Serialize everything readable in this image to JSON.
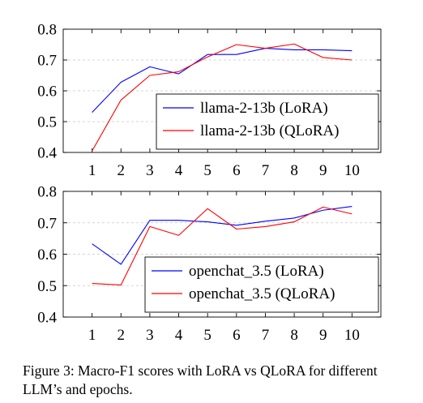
{
  "caption": "Figure 3: Macro-F1 scores with LoRA vs QLoRA for different LLM’s and epochs.",
  "chart_data": [
    {
      "type": "line",
      "x": [
        1,
        2,
        3,
        4,
        5,
        6,
        7,
        8,
        9,
        10
      ],
      "xticks": [
        "1",
        "2",
        "3",
        "4",
        "5",
        "6",
        "7",
        "8",
        "9",
        "10"
      ],
      "xlim": [
        0,
        11
      ],
      "yticks": [
        "0.4",
        "0.5",
        "0.6",
        "0.7",
        "0.8"
      ],
      "ylim": [
        0.4,
        0.8
      ],
      "grid": "horizontal dashed",
      "legend_position": "bottom-right",
      "series": [
        {
          "name": "llama-2-13b (LoRA)",
          "color": "#0000ff",
          "values": [
            0.53,
            0.628,
            0.678,
            0.655,
            0.718,
            0.718,
            0.738,
            0.733,
            0.733,
            0.73
          ]
        },
        {
          "name": "llama-2-13b (QLoRA)",
          "color": "#ff0000",
          "values": [
            0.405,
            0.57,
            0.65,
            0.662,
            0.71,
            0.75,
            0.738,
            0.752,
            0.708,
            0.7
          ]
        }
      ]
    },
    {
      "type": "line",
      "x": [
        1,
        2,
        3,
        4,
        5,
        6,
        7,
        8,
        9,
        10
      ],
      "xticks": [
        "1",
        "2",
        "3",
        "4",
        "5",
        "6",
        "7",
        "8",
        "9",
        "10"
      ],
      "xlim": [
        0,
        11
      ],
      "yticks": [
        "0.4",
        "0.5",
        "0.6",
        "0.7",
        "0.8"
      ],
      "ylim": [
        0.4,
        0.8
      ],
      "grid": "horizontal dashed",
      "legend_position": "bottom-right",
      "series": [
        {
          "name": "openchat_3.5 (LoRA)",
          "color": "#0000ff",
          "values": [
            0.633,
            0.568,
            0.708,
            0.708,
            0.703,
            0.692,
            0.705,
            0.715,
            0.74,
            0.752
          ]
        },
        {
          "name": "openchat_3.5 (QLoRA)",
          "color": "#ff0000",
          "values": [
            0.507,
            0.502,
            0.688,
            0.66,
            0.745,
            0.68,
            0.688,
            0.703,
            0.75,
            0.728
          ]
        }
      ]
    }
  ]
}
